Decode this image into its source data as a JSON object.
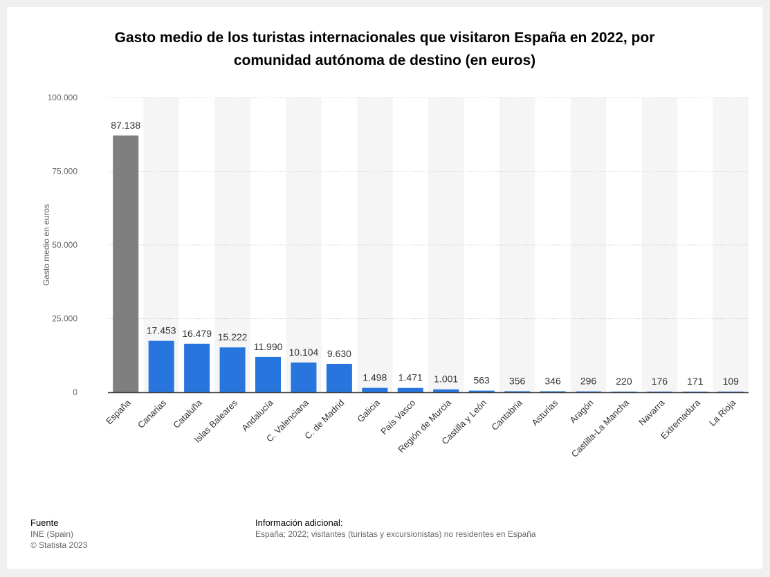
{
  "chart_data": {
    "type": "bar",
    "title_line1": "Gasto medio de los turistas internacionales que visitaron España en 2022, por",
    "title_line2": "comunidad autónoma de destino (en euros)",
    "ylabel": "Gasto medio en euros",
    "xlabel": "",
    "ylim": [
      0,
      100000
    ],
    "yticks": [
      0,
      25000,
      50000,
      75000,
      100000
    ],
    "ytick_labels": [
      "0",
      "25.000",
      "50.000",
      "75.000",
      "100.000"
    ],
    "grid": true,
    "categories": [
      "España",
      "Canarias",
      "Cataluña",
      "Islas Baleares",
      "Andalucía",
      "C. Valenciana",
      "C. de Madrid",
      "Galicia",
      "País Vasco",
      "Región de Murcia",
      "Castilla y León",
      "Cantabria",
      "Asturias",
      "Aragón",
      "Castilla-La Mancha",
      "Navarra",
      "Extremadura",
      "La Rioja"
    ],
    "values": [
      87138,
      17453,
      16479,
      15222,
      11990,
      10104,
      9630,
      1498,
      1471,
      1001,
      563,
      356,
      346,
      296,
      220,
      176,
      171,
      109
    ],
    "value_labels": [
      "87.138",
      "17.453",
      "16.479",
      "15.222",
      "11.990",
      "10.104",
      "9.630",
      "1.498",
      "1.471",
      "1.001",
      "563",
      "356",
      "346",
      "296",
      "220",
      "176",
      "171",
      "109"
    ],
    "colors": {
      "highlight": "#7f7f7f",
      "bar": "#2876dd",
      "band": "#f5f5f5",
      "grid": "#c8c8c8",
      "axis": "#3c3c3c"
    },
    "highlight_index": 0
  },
  "footer": {
    "source_heading": "Fuente",
    "source_line1": "INE (Spain)",
    "source_line2": "© Statista 2023",
    "info_heading": "Información adicional:",
    "info_text": "España; 2022; visitantes (turistas y excursionistas) no residentes en España"
  }
}
